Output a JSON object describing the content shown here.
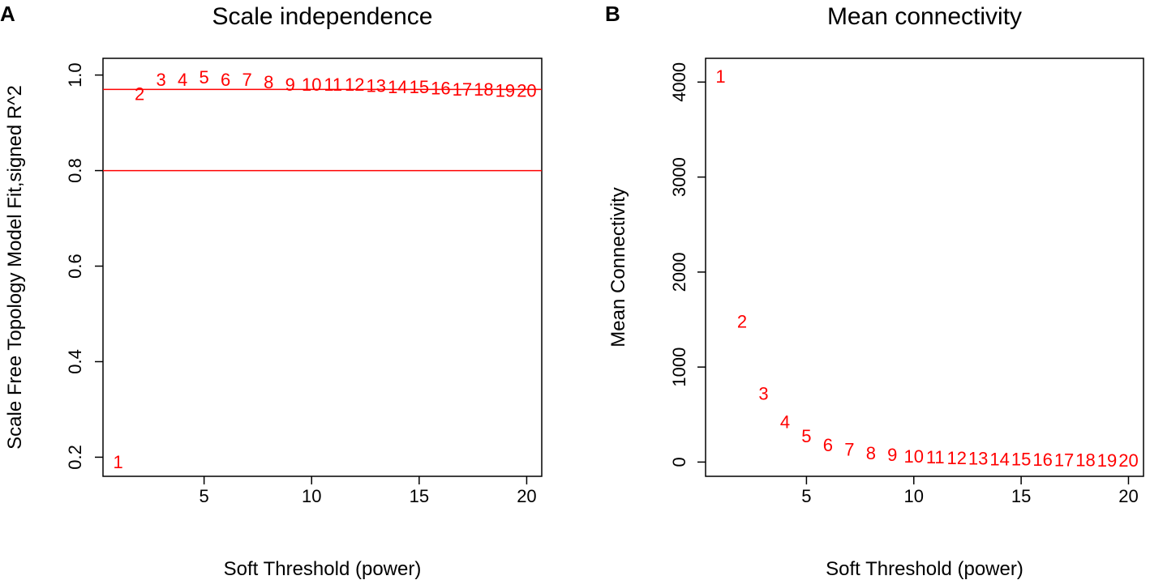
{
  "chart_data": [
    {
      "panel_letter": "A",
      "type": "scatter",
      "title": "Scale independence",
      "xlabel": "Soft Threshold (power)",
      "ylabel": "Scale Free Topology Model Fit,signed R^2",
      "xlim": [
        0.3,
        20.7
      ],
      "ylim": [
        0.16,
        1.035
      ],
      "xticks": [
        5,
        10,
        15,
        20
      ],
      "yticks": [
        0.2,
        0.4,
        0.6,
        0.8,
        1.0
      ],
      "ytick_labels": [
        "0.2",
        "0.4",
        "0.6",
        "0.8",
        "1.0"
      ],
      "point_color": "#ff0000",
      "hlines": [
        {
          "y": 0.97,
          "color": "#ff0000"
        },
        {
          "y": 0.8,
          "color": "#ff0000"
        }
      ],
      "x": [
        1,
        2,
        3,
        4,
        5,
        6,
        7,
        8,
        9,
        10,
        11,
        12,
        13,
        14,
        15,
        16,
        17,
        18,
        19,
        20
      ],
      "y": [
        0.19,
        0.96,
        0.99,
        0.99,
        0.995,
        0.99,
        0.99,
        0.985,
        0.98,
        0.98,
        0.98,
        0.98,
        0.977,
        0.975,
        0.975,
        0.972,
        0.97,
        0.97,
        0.967,
        0.967
      ],
      "labels": [
        "1",
        "2",
        "3",
        "4",
        "5",
        "6",
        "7",
        "8",
        "9",
        "10",
        "11",
        "12",
        "13",
        "14",
        "15",
        "16",
        "17",
        "18",
        "19",
        "20"
      ]
    },
    {
      "panel_letter": "B",
      "type": "scatter",
      "title": "Mean connectivity",
      "xlabel": "Soft Threshold (power)",
      "ylabel": "Mean Connectivity",
      "xlim": [
        0.3,
        20.7
      ],
      "ylim": [
        -150,
        4250
      ],
      "xticks": [
        5,
        10,
        15,
        20
      ],
      "yticks": [
        0,
        1000,
        2000,
        3000,
        4000
      ],
      "ytick_labels": [
        "0",
        "1000",
        "2000",
        "3000",
        "4000"
      ],
      "point_color": "#ff0000",
      "hlines": [],
      "x": [
        1,
        2,
        3,
        4,
        5,
        6,
        7,
        8,
        9,
        10,
        11,
        12,
        13,
        14,
        15,
        16,
        17,
        18,
        19,
        20
      ],
      "y": [
        4060,
        1480,
        720,
        420,
        270,
        180,
        130,
        95,
        75,
        60,
        50,
        42,
        36,
        31,
        27,
        24,
        21,
        19,
        17,
        15
      ],
      "labels": [
        "1",
        "2",
        "3",
        "4",
        "5",
        "6",
        "7",
        "8",
        "9",
        "10",
        "11",
        "12",
        "13",
        "14",
        "15",
        "16",
        "17",
        "18",
        "19",
        "20"
      ]
    }
  ]
}
